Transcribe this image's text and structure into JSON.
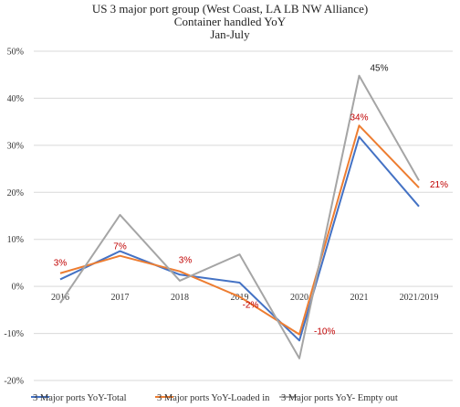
{
  "chart_data": {
    "type": "line",
    "title": "US 3 major port group (West Coast, LA LB NW Alliance)",
    "subtitle": "Container handled YoY",
    "period": "Jan-July",
    "categories": [
      "2016",
      "2017",
      "2018",
      "2019",
      "2020",
      "2021",
      "2021/2019"
    ],
    "ylim": [
      -20,
      50
    ],
    "yticks": [
      "-20%",
      "-10%",
      "0%",
      "10%",
      "20%",
      "30%",
      "40%",
      "50%"
    ],
    "ytick_values": [
      -20,
      -10,
      0,
      10,
      20,
      30,
      40,
      50
    ],
    "grid": true,
    "legend_position": "bottom",
    "series": [
      {
        "name": "3 Major ports YoY-Total",
        "color": "#4472C4",
        "values": [
          1.5,
          7.5,
          2.5,
          0.8,
          -11.5,
          31.8,
          17
        ]
      },
      {
        "name": "3 Major ports YoY-Loaded in",
        "color": "#ED7D31",
        "values": [
          2.8,
          6.5,
          3.2,
          -2.2,
          -10.2,
          34.2,
          21
        ]
      },
      {
        "name": "3 Major ports YoY- Empty out",
        "color": "#A5A5A5",
        "values": [
          -3.5,
          15.2,
          1.2,
          6.8,
          -15.3,
          44.8,
          22.5
        ]
      }
    ],
    "annotations": [
      {
        "text": "3%",
        "series": 1,
        "index": 0,
        "color": "#C00000"
      },
      {
        "text": "7%",
        "series": 1,
        "index": 1,
        "color": "#C00000"
      },
      {
        "text": "3%",
        "series": 1,
        "index": 2,
        "color": "#C00000"
      },
      {
        "text": "-2%",
        "series": 1,
        "index": 3,
        "color": "#C00000"
      },
      {
        "text": "-10%",
        "series": 1,
        "index": 4,
        "color": "#C00000"
      },
      {
        "text": "34%",
        "series": 1,
        "index": 5,
        "color": "#C00000"
      },
      {
        "text": "21%",
        "series": 1,
        "index": 6,
        "color": "#C00000"
      },
      {
        "text": "45%",
        "series": 2,
        "index": 5,
        "color": "#222222"
      }
    ]
  }
}
